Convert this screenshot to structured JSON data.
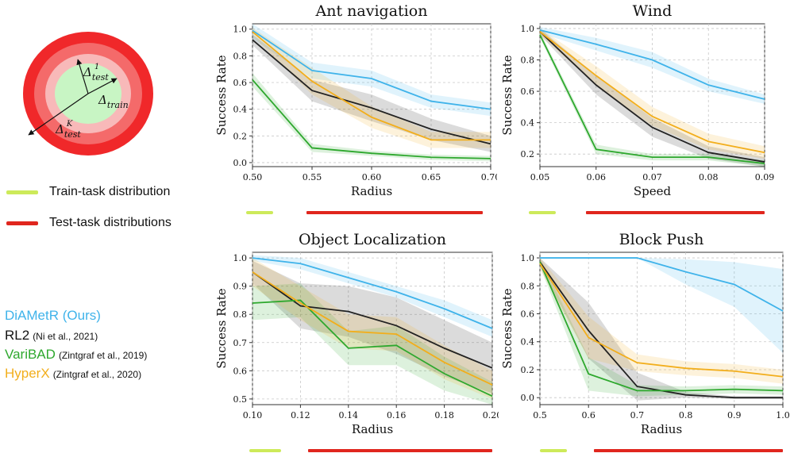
{
  "diagram": {
    "labels": {
      "test_1": "Δtest 1",
      "train": "Δtrain",
      "test_k": "Δtest K"
    },
    "colors": {
      "outer": "#f0282a",
      "mid": "#f46a6a",
      "inner_ring": "#f8b9b9",
      "center": "#c8f5c4"
    }
  },
  "dist_legend": {
    "train_label": "Train-task distribution",
    "test_label": "Test-task distributions",
    "train_color": "#cdea5a",
    "test_color": "#e0261e"
  },
  "methods": [
    {
      "name": "DiAMetR (Ours)",
      "cite": "",
      "color": "#3fb3ea"
    },
    {
      "name": "RL2",
      "cite": "(Ni et al., 2021)",
      "color": "#111111"
    },
    {
      "name": "VariBAD",
      "cite": "(Zintgraf et al., 2019)",
      "color": "#2ea82e"
    },
    {
      "name": "HyperX",
      "cite": "(Zintgraf et al., 2020)",
      "color": "#f2ae1c"
    }
  ],
  "chart_data": [
    {
      "type": "line",
      "title": "Ant navigation",
      "xlabel": "Radius",
      "ylabel": "Success Rate",
      "x": [
        0.5,
        0.55,
        0.6,
        0.65,
        0.7
      ],
      "xticks": [
        "0.50",
        "0.55",
        "0.60",
        "0.65",
        "0.70"
      ],
      "yticks": [
        "0.0",
        "0.2",
        "0.4",
        "0.6",
        "0.8",
        "1.0"
      ],
      "ylim": [
        -0.03,
        1.04
      ],
      "grid": true,
      "series": [
        {
          "name": "DiAMetR (Ours)",
          "color": "#3fb3ea",
          "values": [
            0.99,
            0.69,
            0.63,
            0.46,
            0.4
          ],
          "band": [
            0.06,
            0.06,
            0.06,
            0.05,
            0.05
          ]
        },
        {
          "name": "RL2",
          "color": "#222222",
          "values": [
            0.92,
            0.54,
            0.41,
            0.25,
            0.14
          ],
          "band": [
            0.04,
            0.08,
            0.1,
            0.08,
            0.06
          ]
        },
        {
          "name": "VariBAD",
          "color": "#2ea82e",
          "values": [
            0.62,
            0.11,
            0.07,
            0.04,
            0.03
          ],
          "band": [
            0.05,
            0.03,
            0.02,
            0.02,
            0.02
          ]
        },
        {
          "name": "HyperX",
          "color": "#f2ae1c",
          "values": [
            0.98,
            0.61,
            0.34,
            0.17,
            0.17
          ],
          "band": [
            0.03,
            0.1,
            0.08,
            0.06,
            0.06
          ]
        }
      ]
    },
    {
      "type": "line",
      "title": "Wind",
      "xlabel": "Speed",
      "ylabel": "Success Rate",
      "x": [
        0.05,
        0.06,
        0.07,
        0.08,
        0.09
      ],
      "xticks": [
        "0.05",
        "0.06",
        "0.07",
        "0.08",
        "0.09"
      ],
      "yticks": [
        "0.2",
        "0.4",
        "0.6",
        "0.8",
        "1.0"
      ],
      "ylim": [
        0.12,
        1.03
      ],
      "grid": true,
      "series": [
        {
          "name": "DiAMetR (Ours)",
          "color": "#3fb3ea",
          "values": [
            0.99,
            0.9,
            0.8,
            0.64,
            0.55
          ],
          "band": [
            0.02,
            0.04,
            0.05,
            0.04,
            0.03
          ]
        },
        {
          "name": "RL2",
          "color": "#222222",
          "values": [
            0.98,
            0.64,
            0.37,
            0.21,
            0.15
          ],
          "band": [
            0.02,
            0.06,
            0.06,
            0.04,
            0.03
          ]
        },
        {
          "name": "VariBAD",
          "color": "#2ea82e",
          "values": [
            0.96,
            0.23,
            0.18,
            0.18,
            0.14
          ],
          "band": [
            0.02,
            0.03,
            0.02,
            0.02,
            0.02
          ]
        },
        {
          "name": "HyperX",
          "color": "#f2ae1c",
          "values": [
            0.98,
            0.7,
            0.44,
            0.28,
            0.21
          ],
          "band": [
            0.02,
            0.06,
            0.06,
            0.05,
            0.04
          ]
        }
      ]
    },
    {
      "type": "line",
      "title": "Object Localization",
      "xlabel": "Radius",
      "ylabel": "Success Rate",
      "x": [
        0.1,
        0.12,
        0.14,
        0.16,
        0.18,
        0.2
      ],
      "xticks": [
        "0.10",
        "0.12",
        "0.14",
        "0.16",
        "0.18",
        "0.20"
      ],
      "yticks": [
        "0.5",
        "0.6",
        "0.7",
        "0.8",
        "0.9",
        "1.0"
      ],
      "ylim": [
        0.48,
        1.02
      ],
      "grid": true,
      "series": [
        {
          "name": "DiAMetR (Ours)",
          "color": "#3fb3ea",
          "values": [
            1.0,
            0.98,
            0.93,
            0.88,
            0.82,
            0.75
          ],
          "band": [
            0.01,
            0.02,
            0.02,
            0.02,
            0.03,
            0.03
          ]
        },
        {
          "name": "RL2",
          "color": "#222222",
          "values": [
            0.95,
            0.83,
            0.81,
            0.76,
            0.68,
            0.61
          ],
          "band": [
            0.04,
            0.08,
            0.09,
            0.1,
            0.1,
            0.09
          ]
        },
        {
          "name": "VariBAD",
          "color": "#2ea82e",
          "values": [
            0.84,
            0.85,
            0.68,
            0.69,
            0.59,
            0.51
          ],
          "band": [
            0.06,
            0.06,
            0.06,
            0.07,
            0.06,
            0.05
          ]
        },
        {
          "name": "HyperX",
          "color": "#f2ae1c",
          "values": [
            0.95,
            0.84,
            0.74,
            0.73,
            0.63,
            0.55
          ],
          "band": [
            0.05,
            0.06,
            0.06,
            0.06,
            0.06,
            0.05
          ]
        }
      ]
    },
    {
      "type": "line",
      "title": "Block Push",
      "xlabel": "Radius",
      "ylabel": "Success Rate",
      "x": [
        0.5,
        0.6,
        0.7,
        0.8,
        0.9,
        1.0
      ],
      "xticks": [
        "0.5",
        "0.6",
        "0.7",
        "0.8",
        "0.9",
        "1.0"
      ],
      "yticks": [
        "0.0",
        "0.2",
        "0.4",
        "0.6",
        "0.8",
        "1.0"
      ],
      "ylim": [
        -0.05,
        1.04
      ],
      "grid": true,
      "series": [
        {
          "name": "DiAMetR (Ours)",
          "color": "#3fb3ea",
          "values": [
            1.0,
            1.0,
            1.0,
            0.9,
            0.81,
            0.62
          ],
          "band": [
            0.0,
            0.0,
            0.0,
            0.09,
            0.16,
            0.3
          ]
        },
        {
          "name": "RL2",
          "color": "#222222",
          "values": [
            0.97,
            0.48,
            0.08,
            0.02,
            0.0,
            0.0
          ],
          "band": [
            0.03,
            0.2,
            0.1,
            0.02,
            0.01,
            0.01
          ]
        },
        {
          "name": "VariBAD",
          "color": "#2ea82e",
          "values": [
            0.97,
            0.17,
            0.05,
            0.05,
            0.06,
            0.05
          ],
          "band": [
            0.03,
            0.12,
            0.04,
            0.03,
            0.03,
            0.03
          ]
        },
        {
          "name": "HyperX",
          "color": "#f2ae1c",
          "values": [
            0.96,
            0.43,
            0.25,
            0.21,
            0.19,
            0.15
          ],
          "band": [
            0.04,
            0.15,
            0.06,
            0.05,
            0.05,
            0.05
          ]
        }
      ]
    }
  ]
}
